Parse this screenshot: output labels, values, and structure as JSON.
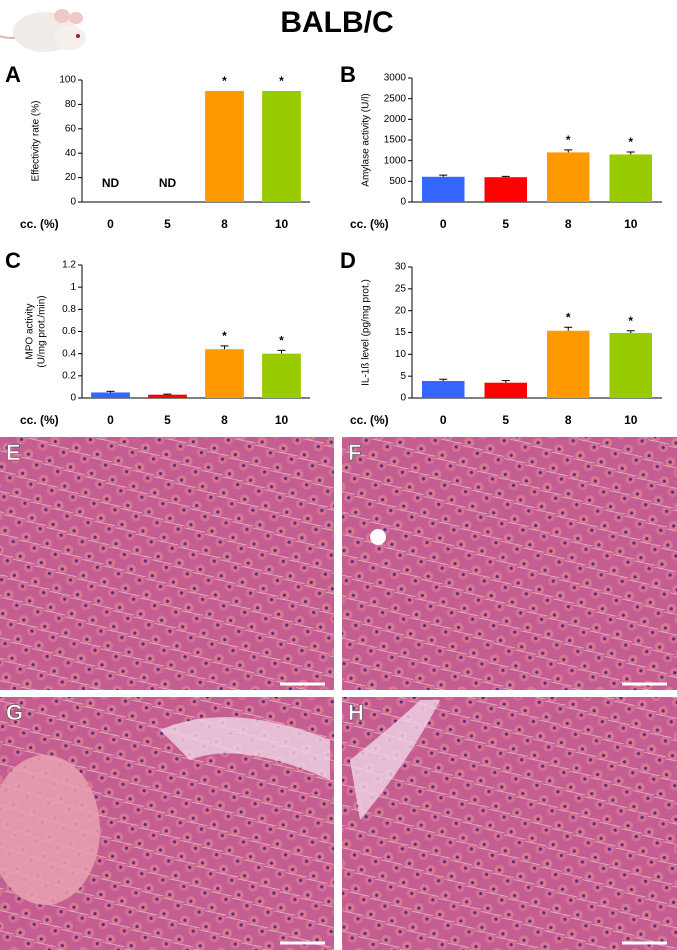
{
  "title": "BALB/C",
  "chart_data": [
    {
      "type": "bar",
      "panel": "A",
      "y_label": [
        "Effectivity rate (%)"
      ],
      "x_label": "cc. (%)",
      "categories": [
        "0",
        "5",
        "8",
        "10"
      ],
      "values": [
        null,
        null,
        91,
        91
      ],
      "errors": [
        null,
        null,
        null,
        null
      ],
      "colors": [
        "#3366ff",
        "#ff0000",
        "#ff9900",
        "#99cc00"
      ],
      "annotations": [
        "ND",
        "ND",
        "*",
        "*"
      ],
      "ylim": [
        0,
        100
      ],
      "yticks": [
        0,
        20,
        40,
        60,
        80,
        100
      ]
    },
    {
      "type": "bar",
      "panel": "B",
      "y_label": [
        "Amylase activity (U/l)"
      ],
      "x_label": "cc. (%)",
      "categories": [
        "0",
        "5",
        "8",
        "10"
      ],
      "values": [
        610,
        600,
        1200,
        1150
      ],
      "errors": [
        40,
        20,
        60,
        60
      ],
      "colors": [
        "#3366ff",
        "#ff0000",
        "#ff9900",
        "#99cc00"
      ],
      "annotations": [
        null,
        null,
        "*",
        "*"
      ],
      "ylim": [
        0,
        3000
      ],
      "yticks": [
        0,
        500,
        1000,
        1500,
        2000,
        2500,
        3000
      ]
    },
    {
      "type": "bar",
      "panel": "C",
      "y_label": [
        "MPO activity",
        "(U/mg prot./min)"
      ],
      "x_label": "cc. (%)",
      "categories": [
        "0",
        "5",
        "8",
        "10"
      ],
      "values": [
        0.05,
        0.03,
        0.44,
        0.4
      ],
      "errors": [
        0.01,
        0.005,
        0.03,
        0.03
      ],
      "colors": [
        "#3366ff",
        "#ff0000",
        "#ff9900",
        "#99cc00"
      ],
      "annotations": [
        null,
        null,
        "*",
        "*"
      ],
      "ylim": [
        0,
        1.2
      ],
      "yticks": [
        0,
        0.2,
        0.4,
        0.6,
        0.8,
        1,
        1.2
      ]
    },
    {
      "type": "bar",
      "panel": "D",
      "y_label": [
        "IL-1ß level (pg/mg prot.)"
      ],
      "x_label": "cc. (%)",
      "categories": [
        "0",
        "5",
        "8",
        "10"
      ],
      "values": [
        3.9,
        3.5,
        15.4,
        14.9
      ],
      "errors": [
        0.4,
        0.5,
        0.8,
        0.5
      ],
      "colors": [
        "#3366ff",
        "#ff0000",
        "#ff9900",
        "#99cc00"
      ],
      "annotations": [
        null,
        null,
        "*",
        "*"
      ],
      "ylim": [
        0,
        30
      ],
      "yticks": [
        0,
        5,
        10,
        15,
        20,
        25,
        30
      ]
    }
  ],
  "images": [
    {
      "panel": "E"
    },
    {
      "panel": "F"
    },
    {
      "panel": "G"
    },
    {
      "panel": "H"
    }
  ]
}
